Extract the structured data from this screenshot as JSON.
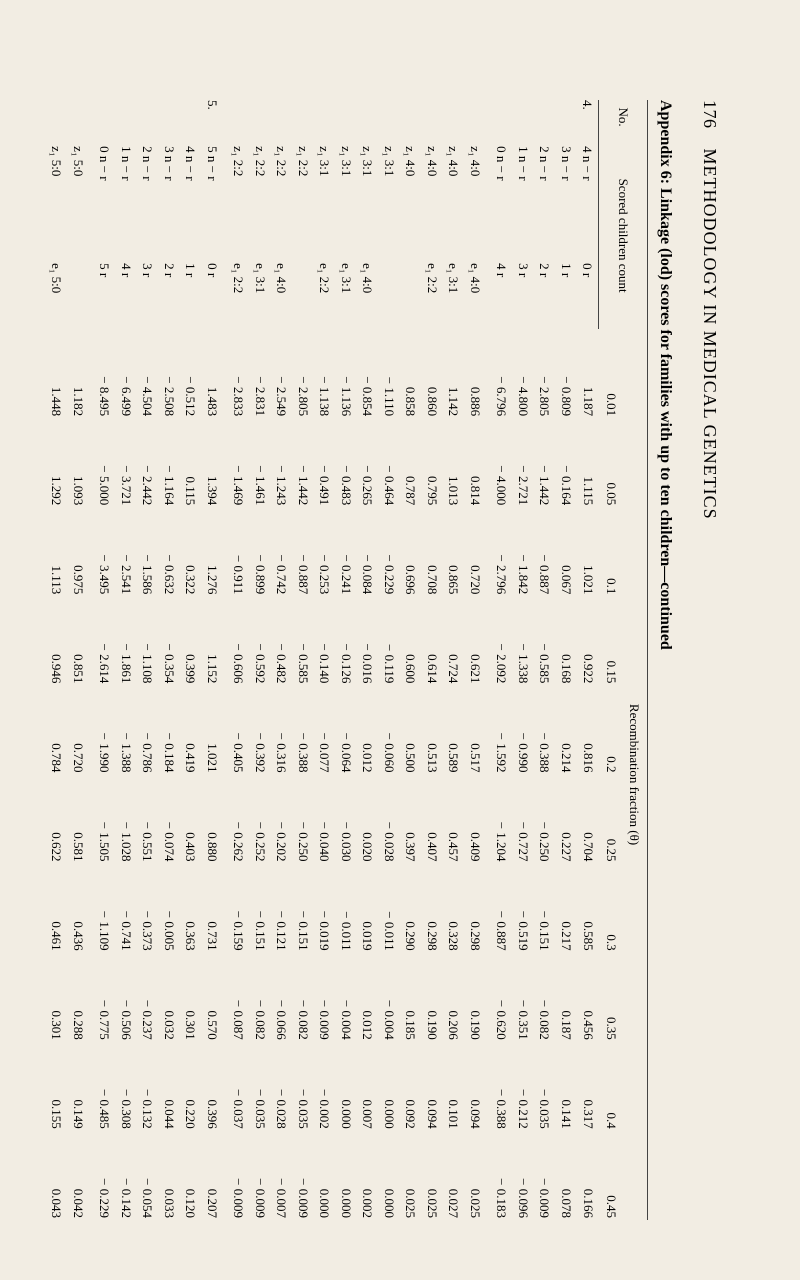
{
  "page_number": "176",
  "header_title": "METHODOLOGY IN MEDICAL GENETICS",
  "table_title": "Appendix 6: Linkage (lod) scores for families with up to ten children—continued",
  "columns": {
    "no": "No.",
    "count": "Scored children\ncount",
    "theta": "Recombination fraction (θ)",
    "theta_vals": [
      "0.01",
      "0.05",
      "0.1",
      "0.15",
      "0.2",
      "0.25",
      "0.3",
      "0.35",
      "0.4",
      "0.45"
    ]
  },
  "groups": [
    {
      "no": "4.",
      "blocks": [
        {
          "rows": [
            {
              "count": "4 n − r",
              "ratio": "0 r",
              "v": [
                "1.187",
                "1.115",
                "1.021",
                "0.922",
                "0.816",
                "0.704",
                "0.585",
                "0.456",
                "0.317",
                "0.166"
              ]
            },
            {
              "count": "3 n − r",
              "ratio": "1 r",
              "v": [
                "− 0.809",
                "− 0.164",
                "0.067",
                "0.168",
                "0.214",
                "0.227",
                "0.217",
                "0.187",
                "0.141",
                "0.078"
              ]
            },
            {
              "count": "2 n − r",
              "ratio": "2 r",
              "v": [
                "− 2.805",
                "− 1.442",
                "− 0.887",
                "− 0.585",
                "− 0.388",
                "− 0.250",
                "− 0.151",
                "− 0.082",
                "− 0.035",
                "− 0.009"
              ]
            },
            {
              "count": "1 n − r",
              "ratio": "3 r",
              "v": [
                "− 4.800",
                "− 2.721",
                "− 1.842",
                "− 1.338",
                "− 0.990",
                "− 0.727",
                "− 0.519",
                "− 0.351",
                "− 0.212",
                "− 0.096"
              ]
            },
            {
              "count": "0 n − r",
              "ratio": "4 r",
              "v": [
                "− 6.796",
                "− 4.000",
                "− 2.796",
                "− 2.092",
                "− 1.592",
                "− 1.204",
                "− 0.887",
                "− 0.620",
                "− 0.388",
                "− 0.183"
              ]
            }
          ]
        },
        {
          "rows": [
            {
              "count": "z₁   4:0",
              "ratio": "e₁   4:0",
              "v": [
                "0.886",
                "0.814",
                "0.720",
                "0.621",
                "0.517",
                "0.409",
                "0.298",
                "0.190",
                "0.094",
                "0.025"
              ]
            },
            {
              "count": "z₁   4:0",
              "ratio": "e₁   3:1",
              "v": [
                "1.142",
                "1.013",
                "0.865",
                "0.724",
                "0.589",
                "0.457",
                "0.328",
                "0.206",
                "0.101",
                "0.027"
              ]
            },
            {
              "count": "z₁   4:0",
              "ratio": "e₁   2:2",
              "v": [
                "0.860",
                "0.795",
                "0.708",
                "0.614",
                "0.513",
                "0.407",
                "0.298",
                "0.190",
                "0.094",
                "0.025"
              ]
            },
            {
              "count": "z₁   4:0",
              "ratio": "",
              "v": [
                "0.858",
                "0.787",
                "0.696",
                "0.600",
                "0.500",
                "0.397",
                "0.290",
                "0.185",
                "0.092",
                "0.025"
              ]
            },
            {
              "count": "z₁   3:1",
              "ratio": "",
              "v": [
                "− 1.110",
                "− 0.464",
                "− 0.229",
                "− 0.119",
                "− 0.060",
                "− 0.028",
                "− 0.011",
                "− 0.004",
                "0.000",
                "0.000"
              ]
            },
            {
              "count": "z₁   3:1",
              "ratio": "e₁   4:0",
              "v": [
                "− 0.854",
                "− 0.265",
                "− 0.084",
                "− 0.016",
                "0.012",
                "0.020",
                "0.019",
                "0.012",
                "0.007",
                "0.002"
              ]
            },
            {
              "count": "z₁   3:1",
              "ratio": "e₁   3:1",
              "v": [
                "− 1.136",
                "− 0.483",
                "− 0.241",
                "− 0.126",
                "− 0.064",
                "− 0.030",
                "− 0.011",
                "− 0.004",
                "0.000",
                "0.000"
              ]
            },
            {
              "count": "z₁   3:1",
              "ratio": "e₁   2:2",
              "v": [
                "− 1.138",
                "− 0.491",
                "− 0.253",
                "− 0.140",
                "− 0.077",
                "− 0.040",
                "− 0.019",
                "− 0.009",
                "− 0.002",
                "0.000"
              ]
            },
            {
              "count": "z₁   2:2",
              "ratio": "",
              "v": [
                "− 2.805",
                "− 1.442",
                "− 0.887",
                "− 0.585",
                "− 0.388",
                "− 0.250",
                "− 0.151",
                "− 0.082",
                "− 0.035",
                "− 0.009"
              ]
            },
            {
              "count": "z₁   2:2",
              "ratio": "e₁   4:0",
              "v": [
                "− 2.549",
                "− 1.243",
                "− 0.742",
                "− 0.482",
                "− 0.316",
                "− 0.202",
                "− 0.121",
                "− 0.066",
                "− 0.028",
                "− 0.007"
              ]
            },
            {
              "count": "z₁   2:2",
              "ratio": "e₁   3:1",
              "v": [
                "− 2.831",
                "− 1.461",
                "− 0.899",
                "− 0.592",
                "− 0.392",
                "− 0.252",
                "− 0.151",
                "− 0.082",
                "− 0.035",
                "− 0.009"
              ]
            },
            {
              "count": "z₁   2:2",
              "ratio": "e₁   2:2",
              "v": [
                "− 2.833",
                "− 1.469",
                "− 0.911",
                "− 0.606",
                "− 0.405",
                "− 0.262",
                "− 0.159",
                "− 0.087",
                "− 0.037",
                "− 0.009"
              ]
            }
          ]
        }
      ]
    },
    {
      "no": "5.",
      "blocks": [
        {
          "rows": [
            {
              "count": "5 n − r",
              "ratio": "0 r",
              "v": [
                "1.483",
                "1.394",
                "1.276",
                "1.152",
                "1.021",
                "0.880",
                "0.731",
                "0.570",
                "0.396",
                "0.207"
              ]
            },
            {
              "count": "4 n − r",
              "ratio": "1 r",
              "v": [
                "− 0.512",
                "0.115",
                "0.322",
                "0.399",
                "0.419",
                "0.403",
                "0.363",
                "0.301",
                "0.220",
                "0.120"
              ]
            },
            {
              "count": "3 n − r",
              "ratio": "2 r",
              "v": [
                "− 2.508",
                "− 1.164",
                "− 0.632",
                "− 0.354",
                "− 0.184",
                "− 0.074",
                "− 0.005",
                "0.032",
                "0.044",
                "0.033"
              ]
            },
            {
              "count": "2 n − r",
              "ratio": "3 r",
              "v": [
                "− 4.504",
                "− 2.442",
                "− 1.586",
                "− 1.108",
                "− 0.786",
                "− 0.551",
                "− 0.373",
                "− 0.237",
                "− 0.132",
                "− 0.054"
              ]
            },
            {
              "count": "1 n − r",
              "ratio": "4 r",
              "v": [
                "− 6.499",
                "− 3.721",
                "− 2.541",
                "− 1.861",
                "− 1.388",
                "− 1.028",
                "− 0.741",
                "− 0.506",
                "− 0.308",
                "− 0.142"
              ]
            },
            {
              "count": "0 n − r",
              "ratio": "5 r",
              "v": [
                "− 8.495",
                "− 5.000",
                "− 3.495",
                "− 2.614",
                "− 1.990",
                "− 1.505",
                "− 1.109",
                "− 0.775",
                "− 0.485",
                "− 0.229"
              ]
            }
          ]
        },
        {
          "rows": [
            {
              "count": "z₁   5:0",
              "ratio": "",
              "v": [
                "1.182",
                "1.093",
                "0.975",
                "0.851",
                "0.720",
                "0.581",
                "0.436",
                "0.288",
                "0.149",
                "0.042"
              ]
            },
            {
              "count": "z₁   5:0",
              "ratio": "e₁   5:0",
              "v": [
                "1.448",
                "1.292",
                "1.113",
                "0.946",
                "0.784",
                "0.622",
                "0.461",
                "0.301",
                "0.155",
                "0.043"
              ]
            }
          ]
        }
      ]
    }
  ]
}
